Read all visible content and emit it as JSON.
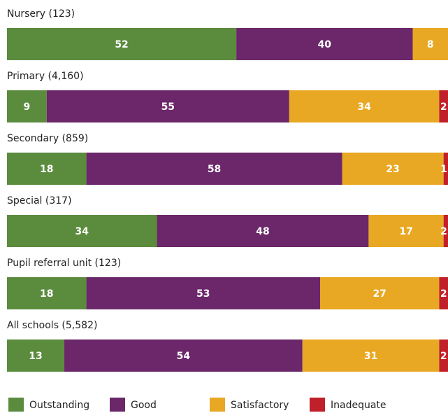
{
  "chart_data": {
    "type": "stacked-bar-horizontal",
    "categories": [
      "Nursery (123)",
      "Primary (4,160)",
      "Secondary (859)",
      "Special (317)",
      "Pupil referral unit (123)",
      "All schools (5,582)"
    ],
    "series": [
      {
        "name": "Outstanding",
        "color": "#5b8c3e",
        "values": [
          52,
          9,
          18,
          34,
          18,
          13
        ]
      },
      {
        "name": "Good",
        "color": "#6b2769",
        "values": [
          40,
          55,
          58,
          48,
          53,
          54
        ]
      },
      {
        "name": "Satisfactory",
        "color": "#e8a823",
        "values": [
          8,
          34,
          23,
          17,
          27,
          31
        ]
      },
      {
        "name": "Inadequate",
        "color": "#c0202a",
        "values": [
          null,
          2,
          1,
          2,
          2,
          2
        ]
      }
    ],
    "xlim": [
      0,
      100
    ]
  }
}
